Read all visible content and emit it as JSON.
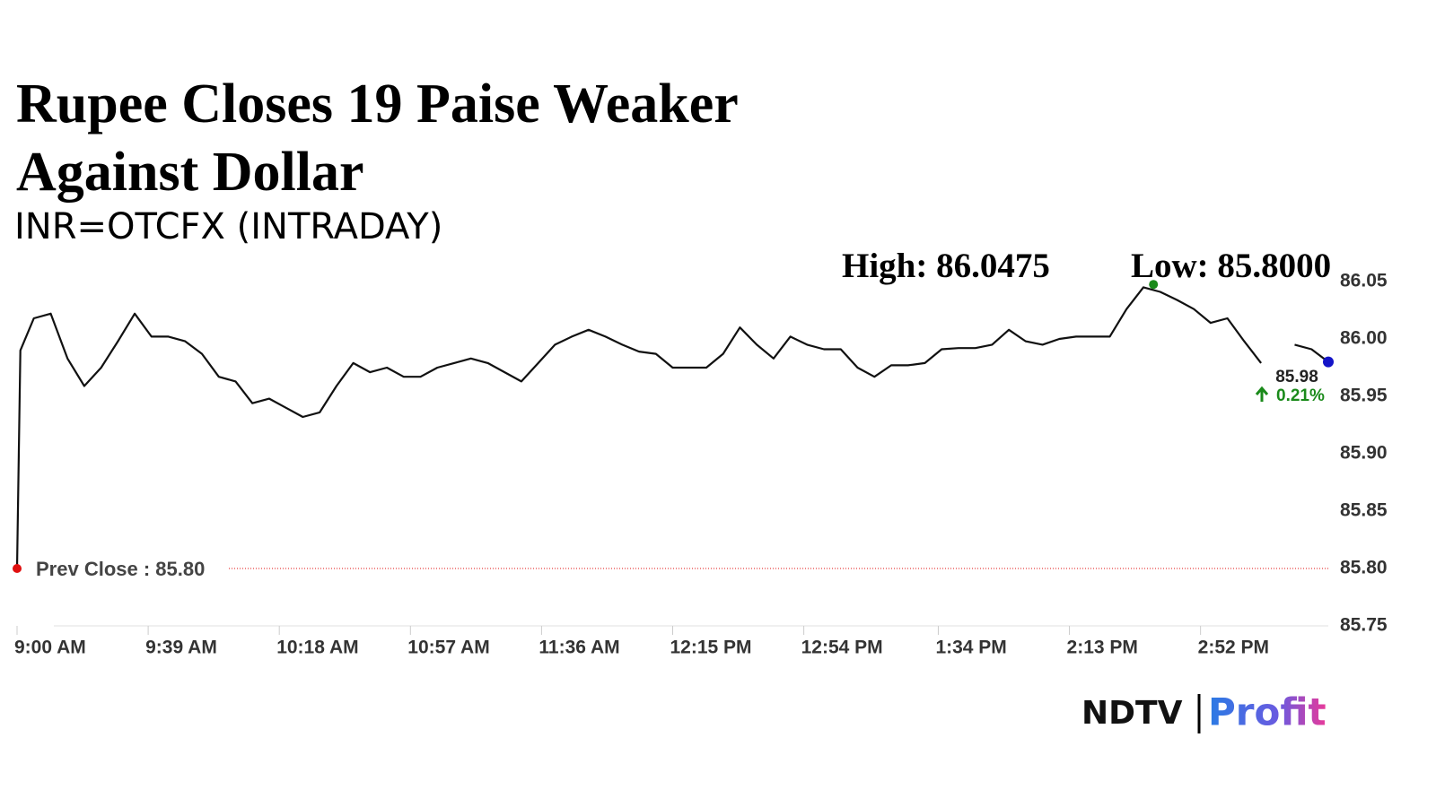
{
  "chart_data": {
    "type": "line",
    "title": "Rupee Closes 19 Paise Weaker Against Dollar",
    "subtitle": "INR=OTCFX (INTRADAY)",
    "x": [
      0,
      1,
      5,
      10,
      15,
      20,
      25,
      30,
      35,
      40,
      45,
      50,
      55,
      60,
      65,
      70,
      75,
      80,
      85,
      90,
      95,
      100,
      105,
      110,
      115,
      120,
      125,
      130,
      135,
      140,
      145,
      150,
      155,
      160,
      165,
      170,
      175,
      180,
      185,
      190,
      195,
      200,
      205,
      210,
      215,
      220,
      225,
      230,
      235,
      240,
      245,
      250,
      255,
      260,
      265,
      270,
      275,
      280,
      285,
      290,
      295,
      300,
      305,
      310,
      315,
      320,
      325,
      330,
      335,
      340,
      345,
      350,
      355,
      360,
      365,
      370,
      375,
      380,
      385,
      390
    ],
    "series": [
      {
        "color": "#111111",
        "values": [
          85.8,
          85.99,
          86.018,
          86.022,
          85.983,
          85.959,
          85.975,
          85.998,
          86.022,
          86.002,
          86.002,
          85.998,
          85.987,
          85.967,
          85.963,
          85.944,
          85.948,
          85.94,
          85.932,
          85.936,
          85.959,
          85.979,
          85.971,
          85.975,
          85.967,
          85.967,
          85.975,
          85.979,
          85.983,
          85.979,
          85.971,
          85.963,
          85.979,
          85.995,
          86.002,
          86.008,
          86.002,
          85.995,
          85.989,
          85.987,
          85.975,
          85.975,
          85.975,
          85.987,
          86.01,
          85.995,
          85.983,
          86.002,
          85.995,
          85.991,
          85.991,
          85.975,
          85.967,
          85.977,
          85.977,
          85.979,
          85.991,
          85.992,
          85.992,
          85.995,
          86.008,
          85.998,
          85.995,
          86.0,
          86.002,
          86.002,
          86.002,
          86.026,
          86.045,
          86.041,
          86.034,
          86.026,
          86.014,
          86.018,
          85.998,
          85.979,
          null,
          85.995,
          85.991,
          85.98
        ]
      }
    ],
    "xlim": [
      0,
      390
    ],
    "xticks": [
      {
        "value": 0,
        "label": "9:00 AM"
      },
      {
        "value": 39,
        "label": "9:39 AM"
      },
      {
        "value": 78,
        "label": "10:18 AM"
      },
      {
        "value": 117,
        "label": "10:57 AM"
      },
      {
        "value": 156,
        "label": "11:36 AM"
      },
      {
        "value": 195,
        "label": "12:15 PM"
      },
      {
        "value": 234,
        "label": "12:54 PM"
      },
      {
        "value": 274,
        "label": "1:34 PM"
      },
      {
        "value": 313,
        "label": "2:13 PM"
      },
      {
        "value": 352,
        "label": "2:52 PM"
      }
    ],
    "ylim": [
      85.75,
      86.05
    ],
    "yticks": [
      {
        "value": 85.75,
        "label": "85.75"
      },
      {
        "value": 85.8,
        "label": "85.80"
      },
      {
        "value": 85.85,
        "label": "85.85"
      },
      {
        "value": 85.9,
        "label": "85.90"
      },
      {
        "value": 85.95,
        "label": "85.95"
      },
      {
        "value": 86.0,
        "label": "86.00"
      },
      {
        "value": 86.05,
        "label": "86.05"
      }
    ],
    "grid": false,
    "high": {
      "x": 338,
      "value": 86.0475,
      "label": "High: 86.0475",
      "color": "#1a8a1a"
    },
    "low": {
      "value": 85.8,
      "label": "Low: 85.8000"
    },
    "prev_close": {
      "x": 0,
      "value": 85.8,
      "label": "Prev Close : 85.80",
      "color": "#e01010"
    },
    "last": {
      "x": 390,
      "value": 85.98,
      "label": "85.98",
      "change": 0.21,
      "change_label": "0.21%",
      "color": "#1414c8",
      "change_color": "#1a8a1a"
    },
    "brand": {
      "name": "NDTV",
      "product": "Profit"
    }
  }
}
